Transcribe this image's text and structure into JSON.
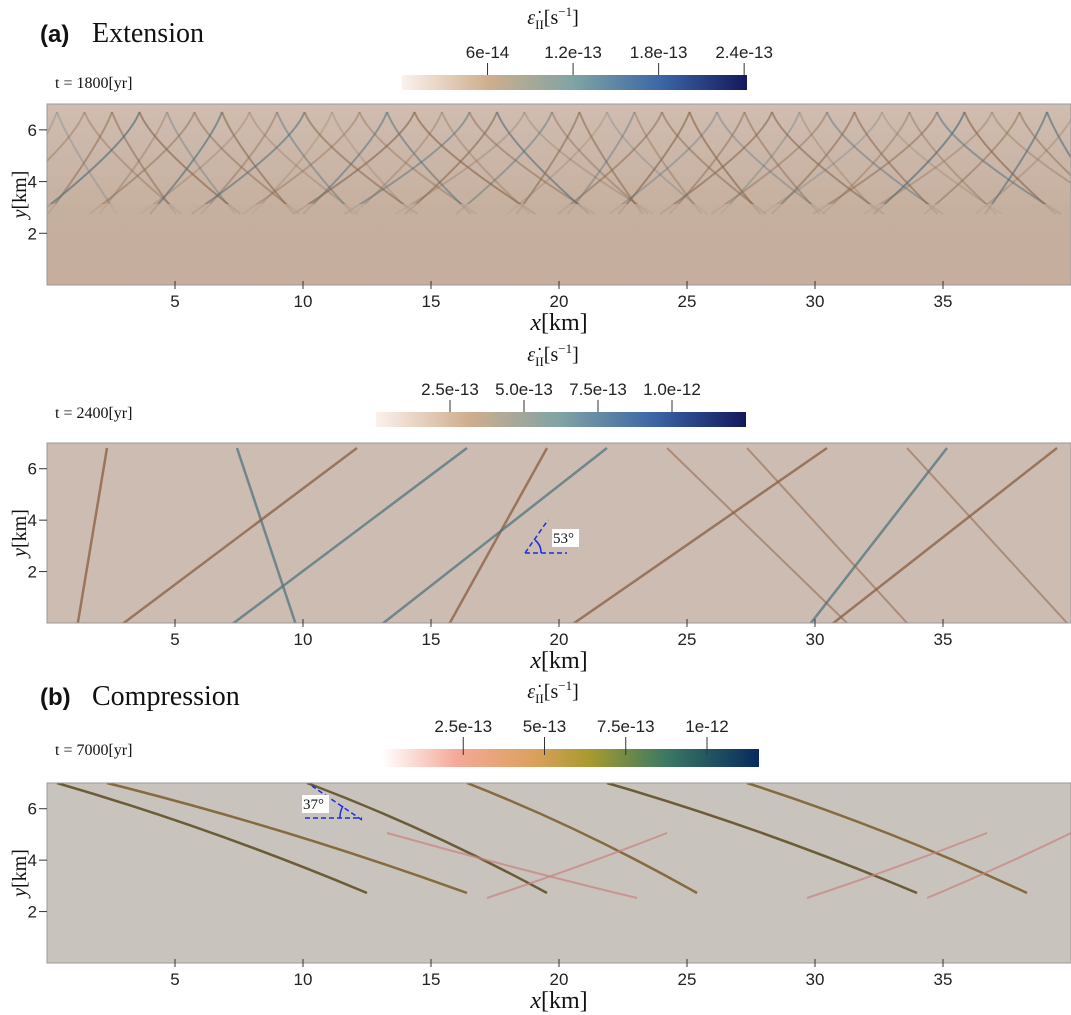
{
  "figure": {
    "xlim": [
      0,
      40
    ],
    "ylim": [
      0,
      7
    ],
    "xticks": [
      5,
      10,
      15,
      20,
      25,
      30,
      35
    ],
    "yticks": [
      2,
      4,
      6
    ],
    "x_label": {
      "var": "x",
      "unit": "[km]"
    },
    "y_label": {
      "var": "y",
      "unit": "[km]"
    },
    "colorbar_label": {
      "symbol": "ε̇",
      "sub": "II",
      "unit": "[s",
      "sup": "−1",
      "end": "]"
    },
    "panels": [
      {
        "label": "(a)",
        "title": "Extension",
        "time": "t = 1800[yr]",
        "colorbar": {
          "clim": [
            0,
            2.42e-13
          ],
          "ticks": [
            6e-14,
            1.2e-13,
            1.8e-13,
            2.4e-13
          ]
        }
      },
      {
        "time": "t = 2400[yr]",
        "annotation": "53°",
        "colorbar": {
          "clim": [
            0,
            1.25e-12
          ],
          "ticks": [
            {
              "value": 2.5e-13,
              "label": "2.5e-13"
            },
            {
              "value": 5e-13,
              "label": "5.0e-13"
            },
            {
              "value": 7.5e-13,
              "label": "7.5e-13"
            },
            {
              "value": 1e-12,
              "label": "1.0e-12"
            }
          ]
        }
      },
      {
        "label": "(b)",
        "title": "Compression",
        "time": "t = 7000[yr]",
        "annotation": "37°",
        "colorbar": {
          "clim": [
            0,
            1.16e-12
          ],
          "ticks": [
            2.5e-13,
            5e-13,
            7.5e-13,
            1e-12
          ]
        }
      }
    ]
  }
}
